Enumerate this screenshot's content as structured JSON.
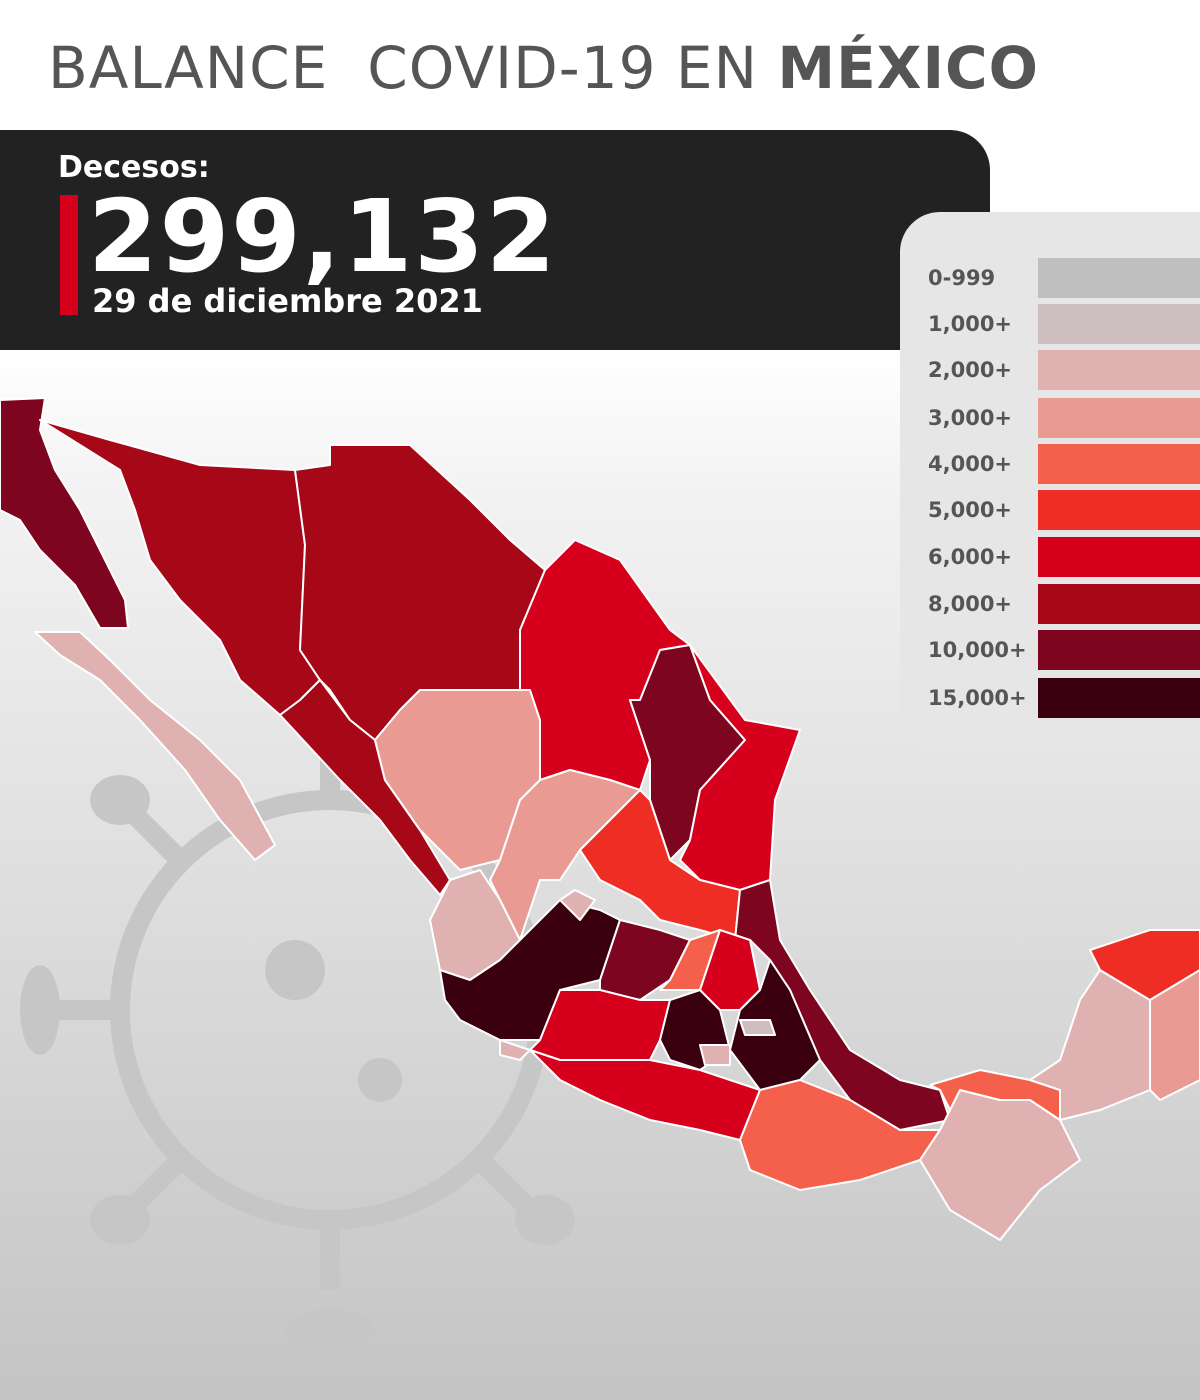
{
  "header": {
    "title": "BALANCE  COVID-19 EN",
    "title_bold": "MÉXICO"
  },
  "summary": {
    "label": "Decesos:",
    "value": "299,132",
    "date": "29 de diciembre 2021"
  },
  "legend": [
    {
      "label": "0-999",
      "color": "#bfbfbf"
    },
    {
      "label": "1,000+",
      "color": "#cdbfbf"
    },
    {
      "label": "2,000+",
      "color": "#e0b1b1"
    },
    {
      "label": "3,000+",
      "color": "#e99a93"
    },
    {
      "label": "4,000+",
      "color": "#f5604c"
    },
    {
      "label": "5,000+",
      "color": "#ee2e24"
    },
    {
      "label": "6,000+",
      "color": "#d6001c"
    },
    {
      "label": "8,000+",
      "color": "#a60818"
    },
    {
      "label": "10,000+",
      "color": "#7d0520"
    },
    {
      "label": "15,000+",
      "color": "#3b0010"
    }
  ]
}
